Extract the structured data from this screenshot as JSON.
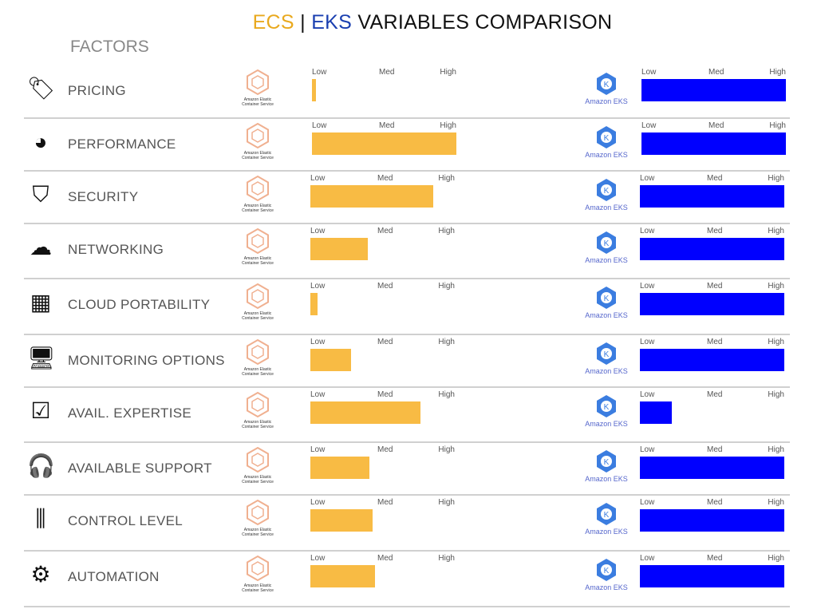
{
  "title": {
    "ecs": "ECS",
    "sep": " | ",
    "eks": "EKS",
    "rest": " VARIABLES COMPARISON"
  },
  "factors_heading": "FACTORS",
  "logos": {
    "ecs": "Amazon Elastic Container Service",
    "eks": "Amazon EKS"
  },
  "colors": {
    "ecs": "#f8bb44",
    "eks": "#0000ff"
  },
  "chart_data": {
    "type": "bar",
    "title": "ECS | EKS VARIABLES COMPARISON",
    "scale_labels": [
      "Low",
      "Med",
      "High"
    ],
    "xlim": [
      0,
      1
    ],
    "categories": [
      "PRICING",
      "PERFORMANCE",
      "SECURITY",
      "NETWORKING",
      "CLOUD PORTABILITY",
      "MONITORING OPTIONS",
      "AVAIL. EXPERTISE",
      "AVAILABLE SUPPORT",
      "CONTROL LEVEL",
      "AUTOMATION"
    ],
    "icons": [
      "price-tag-icon",
      "speedometer-icon",
      "shield-icon",
      "network-icon",
      "cloud-portability-icon",
      "monitor-icon",
      "expertise-checklist-icon",
      "headset-icon",
      "sliders-icon",
      "automation-gears-icon"
    ],
    "series": [
      {
        "name": "ECS",
        "values": [
          0.03,
          1.0,
          0.85,
          0.4,
          0.05,
          0.28,
          0.76,
          0.41,
          0.43,
          0.45
        ]
      },
      {
        "name": "EKS",
        "values": [
          1.0,
          1.0,
          1.0,
          1.0,
          1.0,
          1.0,
          0.22,
          1.0,
          1.0,
          1.0
        ]
      }
    ]
  }
}
